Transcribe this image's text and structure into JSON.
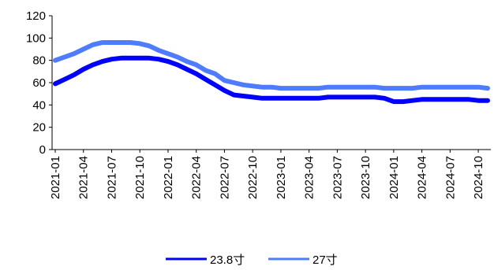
{
  "chart_data": {
    "type": "line",
    "title": "",
    "xlabel": "",
    "ylabel": "",
    "ylim": [
      0,
      120
    ],
    "yticks": [
      0,
      20,
      40,
      60,
      80,
      100,
      120
    ],
    "grid": false,
    "legend_position": "bottom",
    "x": [
      "2021-01",
      "2021-02",
      "2021-03",
      "2021-04",
      "2021-05",
      "2021-06",
      "2021-07",
      "2021-08",
      "2021-09",
      "2021-10",
      "2021-11",
      "2021-12",
      "2022-01",
      "2022-02",
      "2022-03",
      "2022-04",
      "2022-05",
      "2022-06",
      "2022-07",
      "2022-08",
      "2022-09",
      "2022-10",
      "2022-11",
      "2022-12",
      "2023-01",
      "2023-02",
      "2023-03",
      "2023-04",
      "2023-05",
      "2023-06",
      "2023-07",
      "2023-08",
      "2023-09",
      "2023-10",
      "2023-11",
      "2023-12",
      "2024-01",
      "2024-02",
      "2024-03",
      "2024-04",
      "2024-05",
      "2024-06",
      "2024-07",
      "2024-08",
      "2024-09",
      "2024-10",
      "2024-11"
    ],
    "xtick_labels": [
      "2021-01",
      "2021-04",
      "2021-07",
      "2021-10",
      "2022-01",
      "2022-04",
      "2022-07",
      "2022-10",
      "2023-01",
      "2023-04",
      "2023-07",
      "2023-10",
      "2024-01",
      "2024-04",
      "2024-07",
      "2024-10"
    ],
    "series": [
      {
        "name": "23.8寸",
        "color": "#0000ff",
        "values": [
          59,
          63,
          67,
          72,
          76,
          79,
          81,
          82,
          82,
          82,
          82,
          81,
          79,
          76,
          72,
          68,
          63,
          58,
          53,
          49,
          48,
          47,
          46,
          46,
          46,
          46,
          46,
          46,
          46,
          47,
          47,
          47,
          47,
          47,
          47,
          46,
          43,
          43,
          44,
          45,
          45,
          45,
          45,
          45,
          45,
          44,
          44
        ]
      },
      {
        "name": "27寸",
        "color": "#4f7cff",
        "values": [
          80,
          83,
          86,
          90,
          94,
          96,
          96,
          96,
          96,
          95,
          93,
          89,
          86,
          83,
          79,
          76,
          71,
          68,
          62,
          60,
          58,
          57,
          56,
          56,
          55,
          55,
          55,
          55,
          55,
          56,
          56,
          56,
          56,
          56,
          56,
          55,
          55,
          55,
          55,
          56,
          56,
          56,
          56,
          56,
          56,
          56,
          55
        ]
      }
    ]
  }
}
